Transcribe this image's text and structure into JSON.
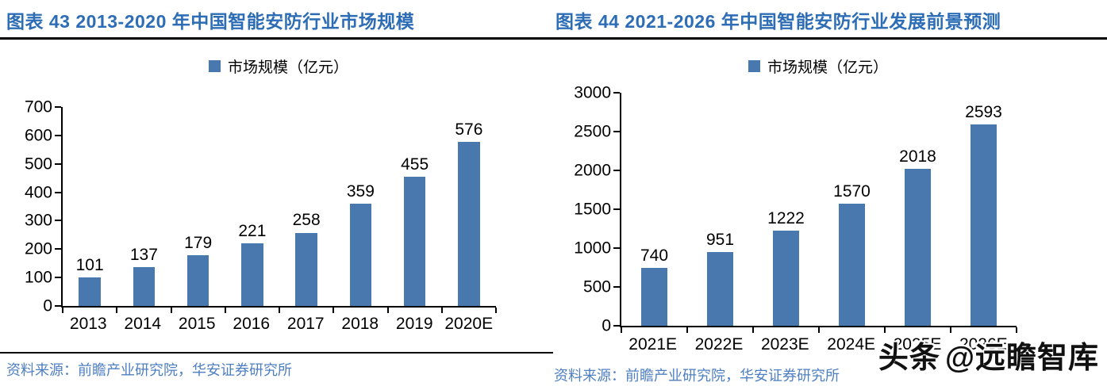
{
  "colors": {
    "bar": "#4878ae",
    "title": "#2d6db5",
    "source": "#4e7fc1",
    "rule": "#000000",
    "watermark": "#111111"
  },
  "watermark": {
    "brand": "头条",
    "handle": "@远瞻智库"
  },
  "chart_data": [
    {
      "type": "bar",
      "title": "图表 43 2013-2020 年中国智能安防行业市场规模",
      "legend": "市场规模（亿元）",
      "categories": [
        "2013",
        "2014",
        "2015",
        "2016",
        "2017",
        "2018",
        "2019",
        "2020E"
      ],
      "values": [
        101,
        137,
        179,
        221,
        258,
        359,
        455,
        576
      ],
      "ylim": [
        0,
        700
      ],
      "yticks": [
        0,
        100,
        200,
        300,
        400,
        500,
        600,
        700
      ],
      "ylabel": "",
      "xlabel": "",
      "grid": "off",
      "legend_position": "top",
      "source": "资料来源：前瞻产业研究院，华安证券研究所"
    },
    {
      "type": "bar",
      "title": "图表 44 2021-2026 年中国智能安防行业发展前景预测",
      "legend": "市场规模（亿元）",
      "categories": [
        "2021E",
        "2022E",
        "2023E",
        "2024E",
        "2025E",
        "2026E"
      ],
      "values": [
        740,
        951,
        1222,
        1570,
        2018,
        2593
      ],
      "ylim": [
        0,
        3000
      ],
      "yticks": [
        0,
        500,
        1000,
        1500,
        2000,
        2500,
        3000
      ],
      "ylabel": "",
      "xlabel": "",
      "grid": "off",
      "legend_position": "top",
      "source": "资料来源：前瞻产业研究院，华安证券研究所"
    }
  ]
}
